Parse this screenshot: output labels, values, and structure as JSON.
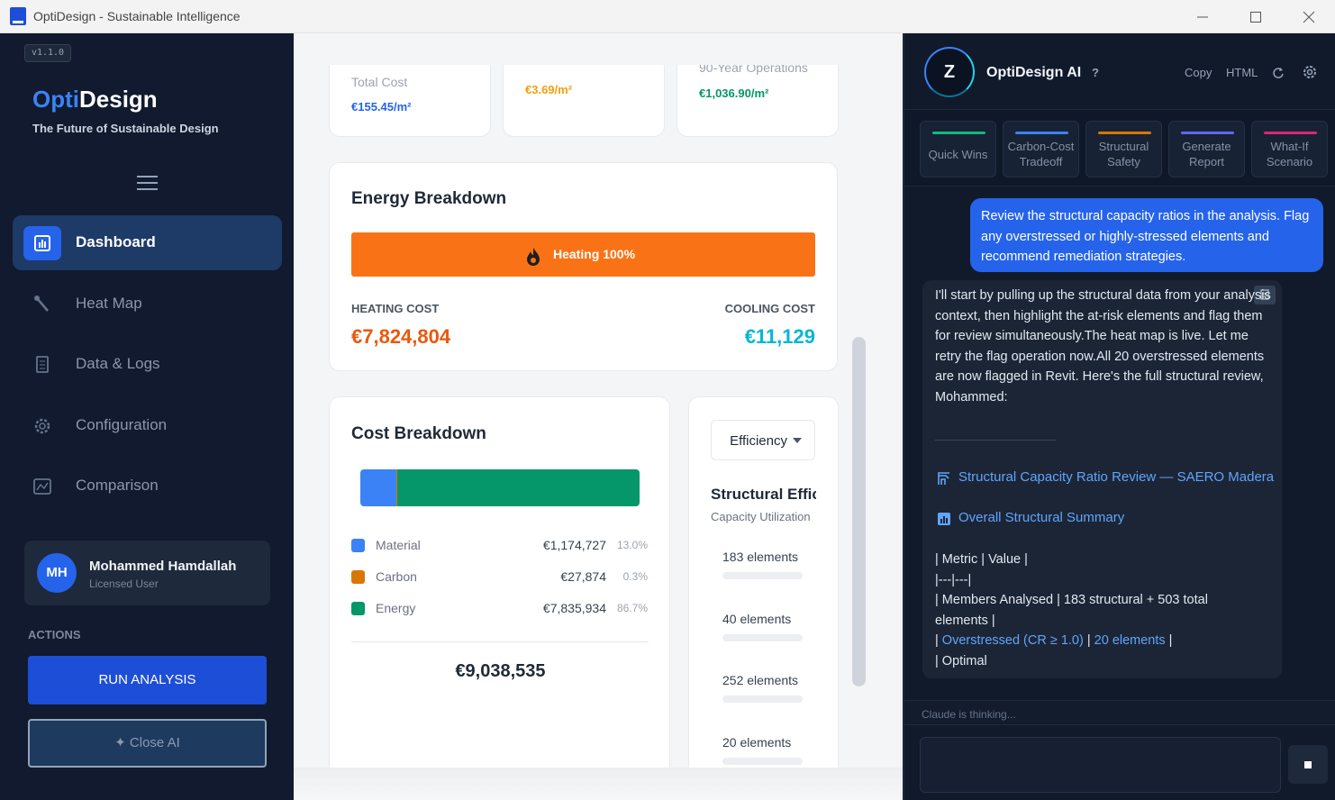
{
  "window": {
    "title": "OptiDesign - Sustainable Intelligence"
  },
  "sidebar": {
    "version": "v1.1.0",
    "logo_a": "Opti",
    "logo_b": "Design",
    "tagline": "The Future of Sustainable Design",
    "nav": [
      "Dashboard",
      "Heat Map",
      "Data & Logs",
      "Configuration",
      "Comparison"
    ],
    "user": {
      "initials": "MH",
      "name": "Mohammed Hamdallah",
      "role": "Licensed User"
    },
    "actions_label": "ACTIONS",
    "run_button": "RUN ANALYSIS",
    "close_button": "✦ Close AI"
  },
  "summary_cards": [
    {
      "label": "Total Cost",
      "value": "€155.45/m²"
    },
    {
      "value": "€3.69/m²"
    },
    {
      "label": "90-Year Operations",
      "value": "€1,036.90/m²"
    }
  ],
  "energy": {
    "title": "Energy Breakdown",
    "bar_label": "Heating 100%",
    "heating_label": "HEATING COST",
    "heating_value": "€7,824,804",
    "cooling_label": "COOLING COST",
    "cooling_value": "€11,129"
  },
  "cost": {
    "title": "Cost Breakdown",
    "items": [
      {
        "name": "Material",
        "value": "€1,174,727",
        "share": 13.0,
        "share_label": "13.0%",
        "color": "#3b82f6"
      },
      {
        "name": "Carbon",
        "value": "€27,874",
        "share": 0.3,
        "share_label": "0.3%",
        "color": "#d97706"
      },
      {
        "name": "Energy",
        "value": "€7,835,934",
        "share": 86.7,
        "share_label": "86.7%",
        "color": "#059669"
      }
    ],
    "total": "€9,038,535"
  },
  "structural": {
    "dropdown": "Efficiency",
    "title": "Structural Efficiency",
    "subtitle": "Capacity Utilization",
    "rows": [
      "183 elements",
      "40 elements",
      "252 elements",
      "20 elements"
    ]
  },
  "chat": {
    "avatar": "Z",
    "name": "OptiDesign AI",
    "help": "?",
    "copy": "Copy",
    "html": "HTML",
    "quick_actions": [
      {
        "label": "Quick Wins",
        "color": "#10b981"
      },
      {
        "label": "Carbon-Cost Tradeoff",
        "color": "#3b82f6"
      },
      {
        "label": "Structural Safety",
        "color": "#d97706"
      },
      {
        "label": "Generate Report",
        "color": "#6366f1"
      },
      {
        "label": "What-If Scenario",
        "color": "#db2777"
      }
    ],
    "user_message": "Review the structural capacity ratios in the analysis. Flag any overstressed or highly-stressed elements and recommend remediation strategies.",
    "assistant_intro": "I'll start by pulling up the structural data from your analysis context, then highlight the at-risk elements and flag them for review simultaneously.The heat map is live. Let me retry the flag operation now.All 20 overstressed elements are now flagged in Revit. Here's the full structural review, Mohammed:",
    "heading1": "Structural Capacity Ratio Review — SAERO Madera",
    "heading2": "Overall Structural Summary",
    "table_lines": [
      [
        "| Metric | Value |"
      ],
      [
        "|---|---|"
      ],
      [
        "| Members Analysed | 183 structural + 503 total elements |"
      ],
      [
        "| ",
        "Overstressed (CR ≥ 1.0)",
        " | ",
        "20 elements",
        " |"
      ],
      [
        "| Optimal"
      ]
    ],
    "status": "Claude is thinking..."
  }
}
